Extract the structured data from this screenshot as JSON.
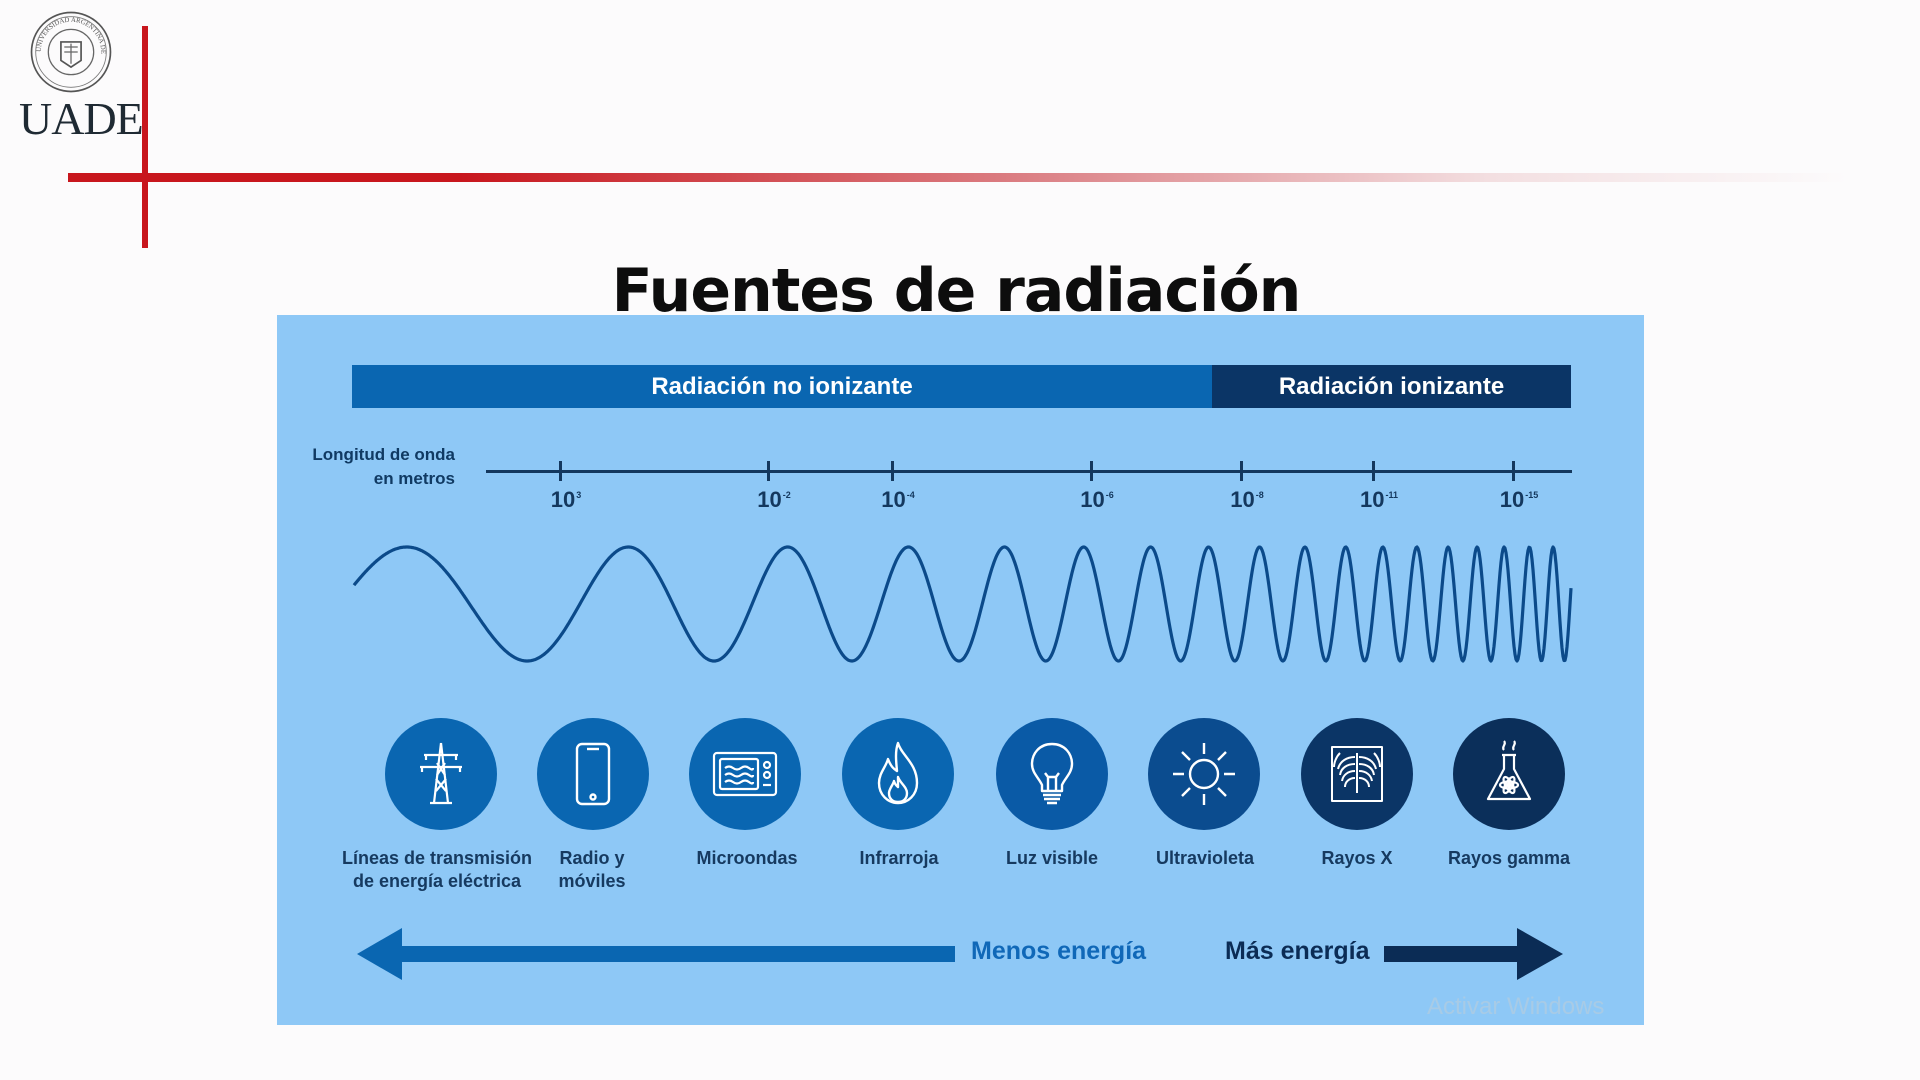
{
  "header": {
    "logo_text": "UADE",
    "seal_text": "UNIVERSIDAD ARGENTINA DE LA EMPRESA",
    "accent_color": "#c8161d"
  },
  "slide": {
    "title": "Fuentes de radiación"
  },
  "diagram": {
    "bands": {
      "non_ionizing": "Radiación no ionizante",
      "ionizing": "Radiación ionizante"
    },
    "wavelength_label": [
      "Longitud de onda",
      "en metros"
    ],
    "ticks": [
      {
        "base": "10",
        "exp": "3"
      },
      {
        "base": "10",
        "exp": "-2"
      },
      {
        "base": "10",
        "exp": "-4"
      },
      {
        "base": "10",
        "exp": "-6"
      },
      {
        "base": "10",
        "exp": "-8"
      },
      {
        "base": "10",
        "exp": "-11"
      },
      {
        "base": "10",
        "exp": "-15"
      }
    ],
    "sources": [
      {
        "label": [
          "Líneas de transmisión",
          "de energía eléctrica"
        ],
        "icon": "power-tower-icon"
      },
      {
        "label": [
          "Radio y",
          "móviles"
        ],
        "icon": "mobile-phone-icon"
      },
      {
        "label": [
          "Microondas"
        ],
        "icon": "microwave-icon"
      },
      {
        "label": [
          "Infrarroja"
        ],
        "icon": "flame-icon"
      },
      {
        "label": [
          "Luz visible"
        ],
        "icon": "light-bulb-icon"
      },
      {
        "label": [
          "Ultravioleta"
        ],
        "icon": "sun-icon"
      },
      {
        "label": [
          "Rayos X"
        ],
        "icon": "xray-ribcage-icon"
      },
      {
        "label": [
          "Rayos gamma"
        ],
        "icon": "radioactive-flask-icon"
      }
    ],
    "energy": {
      "less": "Menos energía",
      "more": "Más energía"
    },
    "colors": {
      "background": "#8ec8f6",
      "non_ionizing": "#0a66b1",
      "ionizing": "#0b3566"
    }
  },
  "watermark": "Activar Windows"
}
